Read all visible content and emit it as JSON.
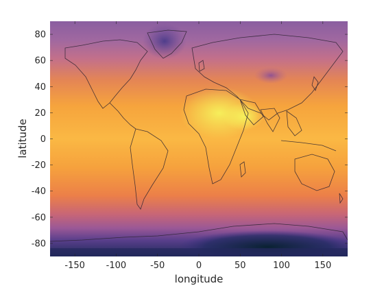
{
  "chart_data": {
    "type": "heatmap",
    "title": "",
    "xlabel": "longitude",
    "ylabel": "latitude",
    "xlim": [
      -180,
      180
    ],
    "ylim": [
      -90,
      90
    ],
    "x_ticks": [
      -150,
      -100,
      -50,
      0,
      50,
      100,
      150
    ],
    "y_ticks": [
      -80,
      -60,
      -40,
      -20,
      0,
      20,
      40,
      60,
      80
    ],
    "colormap": [
      "#0d1f3c",
      "#3b2f83",
      "#7a4a9a",
      "#b56a8c",
      "#e2734f",
      "#f6a640",
      "#fbd24a",
      "#f4f25a"
    ],
    "grid": false,
    "overlay": "country borders"
  }
}
